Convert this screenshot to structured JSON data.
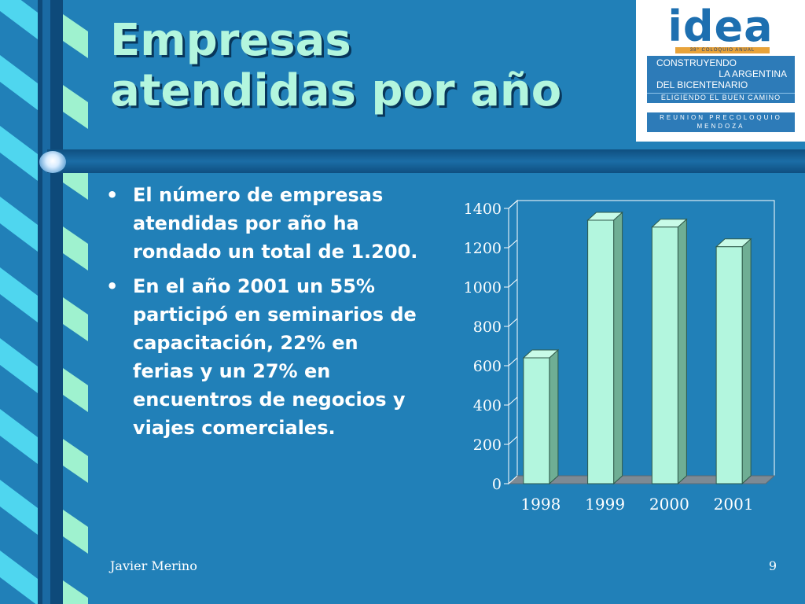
{
  "slide": {
    "title_lines": [
      "Empresas",
      "atendidas por año"
    ],
    "bullets": [
      "El número de empresas atendidas por año ha rondado un total de 1.200.",
      "En el año 2001 un 55% participó en seminarios de capacitación, 22% en ferias y un 27% en encuentros de negocios y viajes comerciales."
    ],
    "footer_author": "Javier Merino",
    "page_number": "9"
  },
  "logo": {
    "word": "idea",
    "coloquio": "38° COLOQUIO ANUAL",
    "line1": "CONSTRUYENDO",
    "line2": "LA ARGENTINA",
    "line3": "DEL BICENTENARIO",
    "line4": "ELIGIENDO EL BUEN CAMINO",
    "reunion": "REUNION PRECOLOQUIO",
    "city": "MENDOZA"
  },
  "colors": {
    "background": "#2180b8",
    "title": "#b3f6de",
    "bar_front": "#b3f6de",
    "bar_side": "#6fae94",
    "bar_top": "#c9fbe8"
  },
  "chart_data": {
    "type": "bar",
    "categories": [
      "1998",
      "1999",
      "2000",
      "2001"
    ],
    "values": [
      640,
      1340,
      1305,
      1205
    ],
    "ylim": [
      0,
      1400
    ],
    "yticks": [
      0,
      200,
      400,
      600,
      800,
      1000,
      1200,
      1400
    ],
    "title": "",
    "xlabel": "",
    "ylabel": "",
    "grid": false,
    "legend": "none",
    "three_d": true
  }
}
